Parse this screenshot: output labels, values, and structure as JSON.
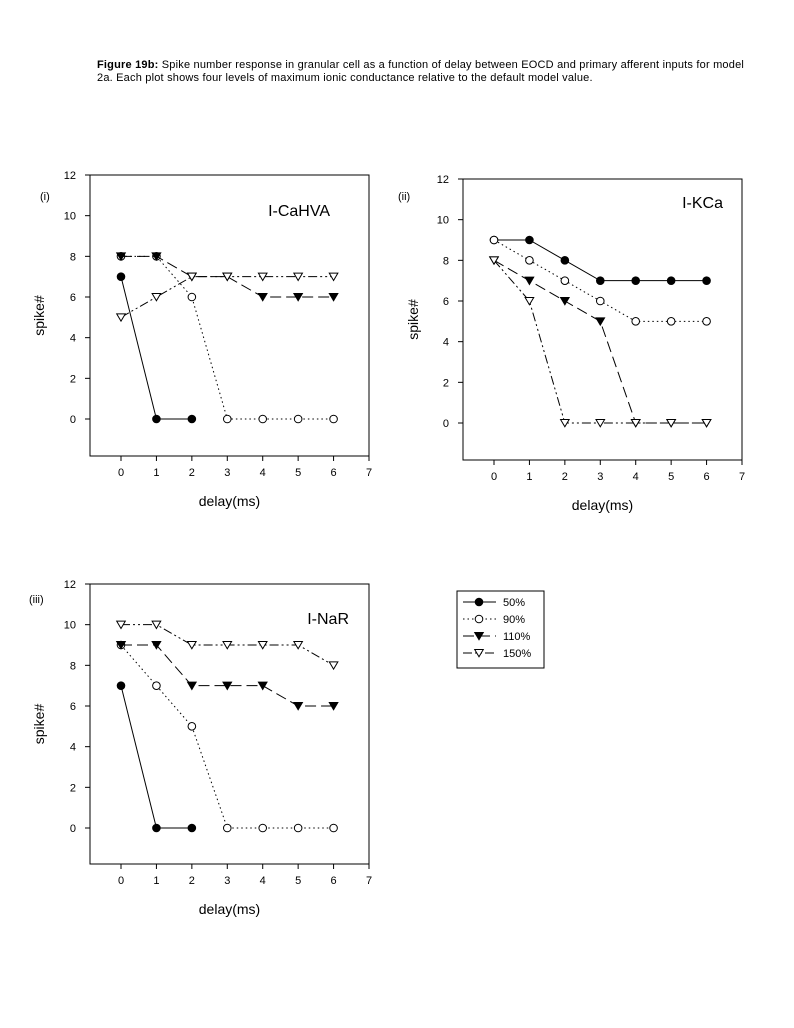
{
  "caption": {
    "label": "Figure 19b:",
    "text": " Spike number response in granular cell as a function of delay between EOCD and primary afferent inputs for model 2a. Each plot shows four levels of maximum ionic conductance relative to the default model value."
  },
  "legend": {
    "entries": [
      "50%",
      "90%",
      "110%",
      "150%"
    ]
  },
  "chart_data": [
    {
      "type": "line",
      "panel_label": "(i)",
      "title": "I-CaHVA",
      "xlabel": "delay(ms)",
      "ylabel": "spike#",
      "xlim": [
        -0.8,
        7
      ],
      "ylim": [
        -1.8,
        12
      ],
      "xticks": [
        0,
        1,
        2,
        3,
        4,
        5,
        6,
        7
      ],
      "yticks": [
        0,
        2,
        4,
        6,
        8,
        10,
        12
      ],
      "x": [
        0,
        1,
        2,
        3,
        4,
        5,
        6
      ],
      "series": [
        {
          "name": "50%",
          "marker": "filled-circle",
          "dash": "solid",
          "values": [
            7,
            0,
            0,
            null,
            null,
            null,
            null
          ]
        },
        {
          "name": "90%",
          "marker": "open-circle",
          "dash": "dotted",
          "values": [
            8,
            8,
            6,
            0,
            0,
            0,
            0
          ]
        },
        {
          "name": "110%",
          "marker": "filled-triangle",
          "dash": "long-dash",
          "values": [
            8,
            8,
            7,
            7,
            6,
            6,
            6
          ]
        },
        {
          "name": "150%",
          "marker": "open-triangle",
          "dash": "dash-dot-dot",
          "values": [
            5,
            6,
            7,
            7,
            7,
            7,
            7
          ]
        }
      ]
    },
    {
      "type": "line",
      "panel_label": "(ii)",
      "title": "I-KCa",
      "xlabel": "delay(ms)",
      "ylabel": "spike#",
      "xlim": [
        -0.8,
        7
      ],
      "ylim": [
        -1.8,
        12
      ],
      "xticks": [
        0,
        1,
        2,
        3,
        4,
        5,
        6,
        7
      ],
      "yticks": [
        0,
        2,
        4,
        6,
        8,
        10,
        12
      ],
      "x": [
        0,
        1,
        2,
        3,
        4,
        5,
        6
      ],
      "series": [
        {
          "name": "50%",
          "marker": "filled-circle",
          "dash": "solid",
          "values": [
            9,
            9,
            8,
            7,
            7,
            7,
            7
          ]
        },
        {
          "name": "90%",
          "marker": "open-circle",
          "dash": "dotted",
          "values": [
            9,
            8,
            7,
            6,
            5,
            5,
            5
          ]
        },
        {
          "name": "110%",
          "marker": "filled-triangle",
          "dash": "long-dash",
          "values": [
            8,
            7,
            6,
            5,
            0,
            0,
            0
          ]
        },
        {
          "name": "150%",
          "marker": "open-triangle",
          "dash": "dash-dot-dot",
          "values": [
            8,
            6,
            0,
            0,
            0,
            0,
            0
          ]
        }
      ]
    },
    {
      "type": "line",
      "panel_label": "(iii)",
      "title": "I-NaR",
      "xlabel": "delay(ms)",
      "ylabel": "spike#",
      "xlim": [
        -0.8,
        7
      ],
      "ylim": [
        -1.8,
        12
      ],
      "xticks": [
        0,
        1,
        2,
        3,
        4,
        5,
        6,
        7
      ],
      "yticks": [
        0,
        2,
        4,
        6,
        8,
        10,
        12
      ],
      "x": [
        0,
        1,
        2,
        3,
        4,
        5,
        6
      ],
      "series": [
        {
          "name": "50%",
          "marker": "filled-circle",
          "dash": "solid",
          "values": [
            7,
            0,
            0,
            null,
            null,
            null,
            null
          ]
        },
        {
          "name": "90%",
          "marker": "open-circle",
          "dash": "dotted",
          "values": [
            9,
            7,
            5,
            0,
            0,
            0,
            0
          ]
        },
        {
          "name": "110%",
          "marker": "filled-triangle",
          "dash": "long-dash",
          "values": [
            9,
            9,
            7,
            7,
            7,
            6,
            6
          ]
        },
        {
          "name": "150%",
          "marker": "open-triangle",
          "dash": "dash-dot-dot",
          "values": [
            10,
            10,
            9,
            9,
            9,
            9,
            8
          ]
        }
      ]
    }
  ]
}
